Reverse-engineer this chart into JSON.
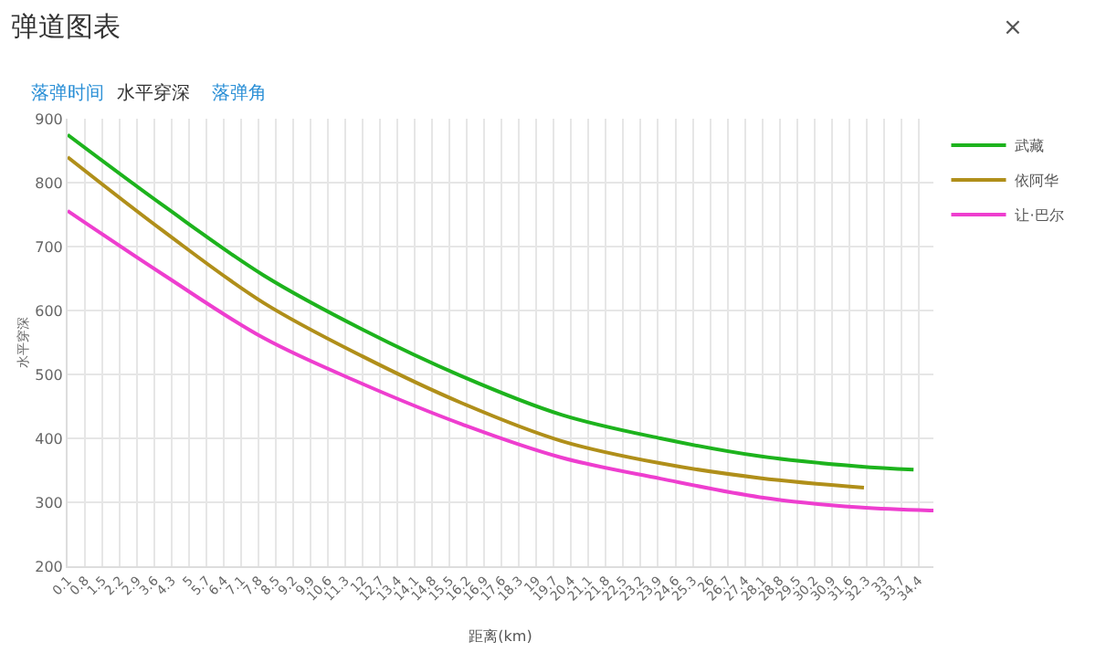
{
  "chart_data": {
    "type": "line",
    "title": "弹道图表",
    "xlabel": "距离(km)",
    "ylabel": "水平穿深",
    "annotations": [
      "落弹时间",
      "水平穿深",
      "落弹角",
      "×"
    ],
    "xlim": [
      0.1,
      35.0
    ],
    "xticks": [
      0.1,
      0.8,
      1.5,
      2.2,
      2.9,
      3.6,
      4.3,
      5,
      5.7,
      6.4,
      7.1,
      7.8,
      8.5,
      9.2,
      9.9,
      10.6,
      11.3,
      12,
      12.7,
      13.4,
      14.1,
      14.8,
      15.5,
      16.2,
      16.9,
      17.6,
      18.3,
      19,
      19.7,
      20.4,
      21.1,
      21.8,
      22.5,
      23.2,
      23.9,
      24.6,
      25.3,
      26,
      26.7,
      27.4,
      28.1,
      28.8,
      29.5,
      30.2,
      30.9,
      31.6,
      32.3,
      33,
      33.7,
      34.4
    ],
    "ylim": [
      200,
      900
    ],
    "yticks": [
      200,
      300,
      400,
      500,
      600,
      700,
      800,
      900
    ],
    "grid": true,
    "legend": "top right",
    "marker": "none",
    "line_style": "solid",
    "series": [
      {
        "name": "武藏",
        "color": "#1db31d",
        "x": [
          0.1,
          4,
          8,
          12,
          16,
          20,
          24,
          28,
          32,
          34.2
        ],
        "values": [
          875,
          763,
          655,
          570,
          497,
          437,
          400,
          372,
          356,
          351
        ]
      },
      {
        "name": "依阿华",
        "color": "#b08f1a",
        "x": [
          0.1,
          4,
          8,
          12,
          16,
          20,
          24,
          28,
          32.2
        ],
        "values": [
          840,
          723,
          612,
          528,
          455,
          396,
          361,
          338,
          323
        ]
      },
      {
        "name": "让·巴尔",
        "color": "#ee3ecf",
        "x": [
          0.1,
          4,
          8,
          12,
          16,
          20,
          24,
          28,
          32,
          35.0
        ],
        "values": [
          756,
          655,
          557,
          485,
          422,
          370,
          337,
          308,
          292,
          287
        ]
      }
    ]
  }
}
